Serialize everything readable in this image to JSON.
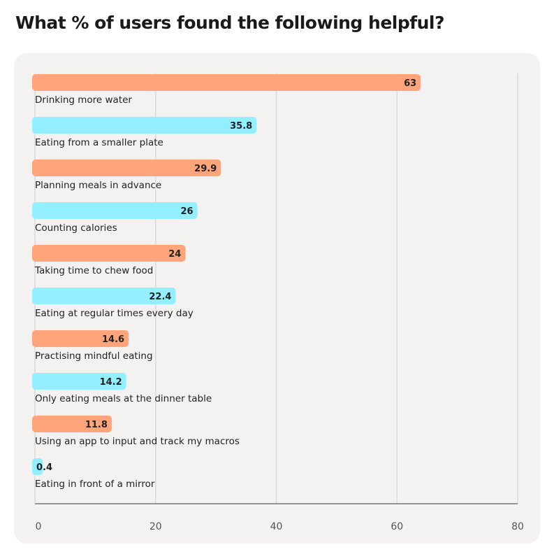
{
  "chart_data": {
    "type": "bar",
    "orientation": "horizontal",
    "title": "What % of users found the following helpful?",
    "categories": [
      "Drinking more water",
      "Eating from a smaller plate",
      "Planning meals in advance",
      "Counting calories",
      "Taking time to chew food",
      "Eating at regular times every day",
      "Practising mindful eating",
      "Only eating meals at the dinner table",
      "Using an app to input and track my macros",
      "Eating in front of a mirror"
    ],
    "values": [
      63,
      35.8,
      29.9,
      26,
      24,
      22.4,
      14.6,
      14.2,
      11.8,
      0.4
    ],
    "xlim": [
      0,
      80
    ],
    "xticks": [
      0,
      20,
      40,
      60,
      80
    ],
    "grid": true,
    "colors": [
      "#ffa47b",
      "#93efff"
    ]
  }
}
